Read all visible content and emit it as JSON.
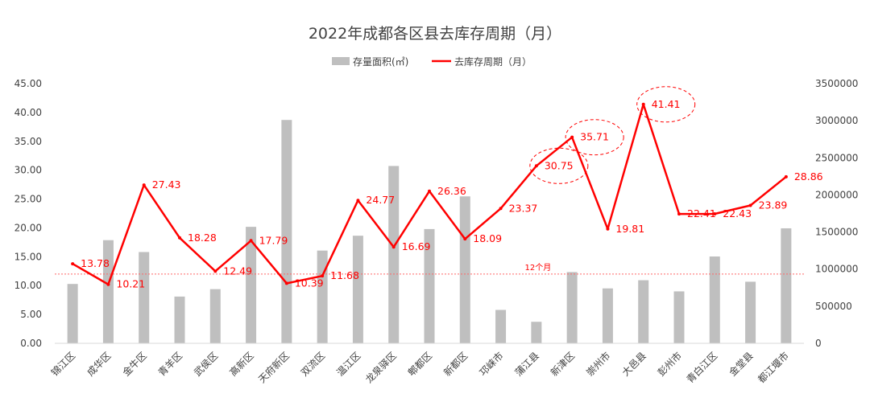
{
  "chart_data": {
    "type": "bar+line",
    "title": "2022年成都各区县去库存周期（月）",
    "legend": {
      "placement": "top-center",
      "bar_label": "存量面积(㎡)",
      "line_label": "去库存周期（月）"
    },
    "categories": [
      "锦江区",
      "成华区",
      "金牛区",
      "青羊区",
      "武侯区",
      "高新区",
      "天府新区",
      "双流区",
      "温江区",
      "龙泉驿区",
      "郫都区",
      "新都区",
      "邛崃市",
      "蒲江县",
      "新津区",
      "崇州市",
      "大邑县",
      "彭州市",
      "青白江区",
      "金堂县",
      "都江堰市"
    ],
    "series": [
      {
        "name": "存量面积(㎡)",
        "axis": "right",
        "kind": "bar",
        "color": "#bfbfbf",
        "values": [
          800000,
          1390000,
          1230000,
          630000,
          730000,
          1570000,
          3010000,
          1250000,
          1450000,
          2390000,
          1540000,
          1980000,
          450000,
          290000,
          960000,
          740000,
          850000,
          700000,
          1170000,
          830000,
          1550000
        ]
      },
      {
        "name": "去库存周期（月）",
        "axis": "left",
        "kind": "line",
        "color": "#ff0000",
        "values": [
          13.78,
          10.21,
          27.43,
          18.28,
          12.49,
          17.79,
          10.39,
          11.68,
          24.77,
          16.69,
          26.36,
          18.09,
          23.37,
          30.75,
          35.71,
          19.81,
          41.41,
          22.41,
          22.43,
          23.89,
          28.86
        ],
        "labels": [
          "13.78",
          "10.21",
          "27.43",
          "18.28",
          "12.49",
          "17.79",
          "10.39",
          "11.68",
          "24.77",
          "16.69",
          "26.36",
          "18.09",
          "23.37",
          "30.75",
          "35.71",
          "19.81",
          "41.41",
          "22.41",
          "22.43",
          "23.89",
          "28.86"
        ]
      }
    ],
    "y_left": {
      "min": 0,
      "max": 45,
      "ticks": [
        "0.00",
        "5.00",
        "10.00",
        "15.00",
        "20.00",
        "25.00",
        "30.00",
        "35.00",
        "40.00",
        "45.00"
      ]
    },
    "y_right": {
      "min": 0,
      "max": 3500000,
      "ticks": [
        "0",
        "500000",
        "1000000",
        "1500000",
        "2000000",
        "2500000",
        "3000000",
        "3500000"
      ]
    },
    "reference_line": {
      "value": 12,
      "label": "12个月",
      "color": "#ff6666"
    },
    "highlighted_points": [
      "蒲江县",
      "新津区",
      "大邑县"
    ],
    "grid": false
  }
}
